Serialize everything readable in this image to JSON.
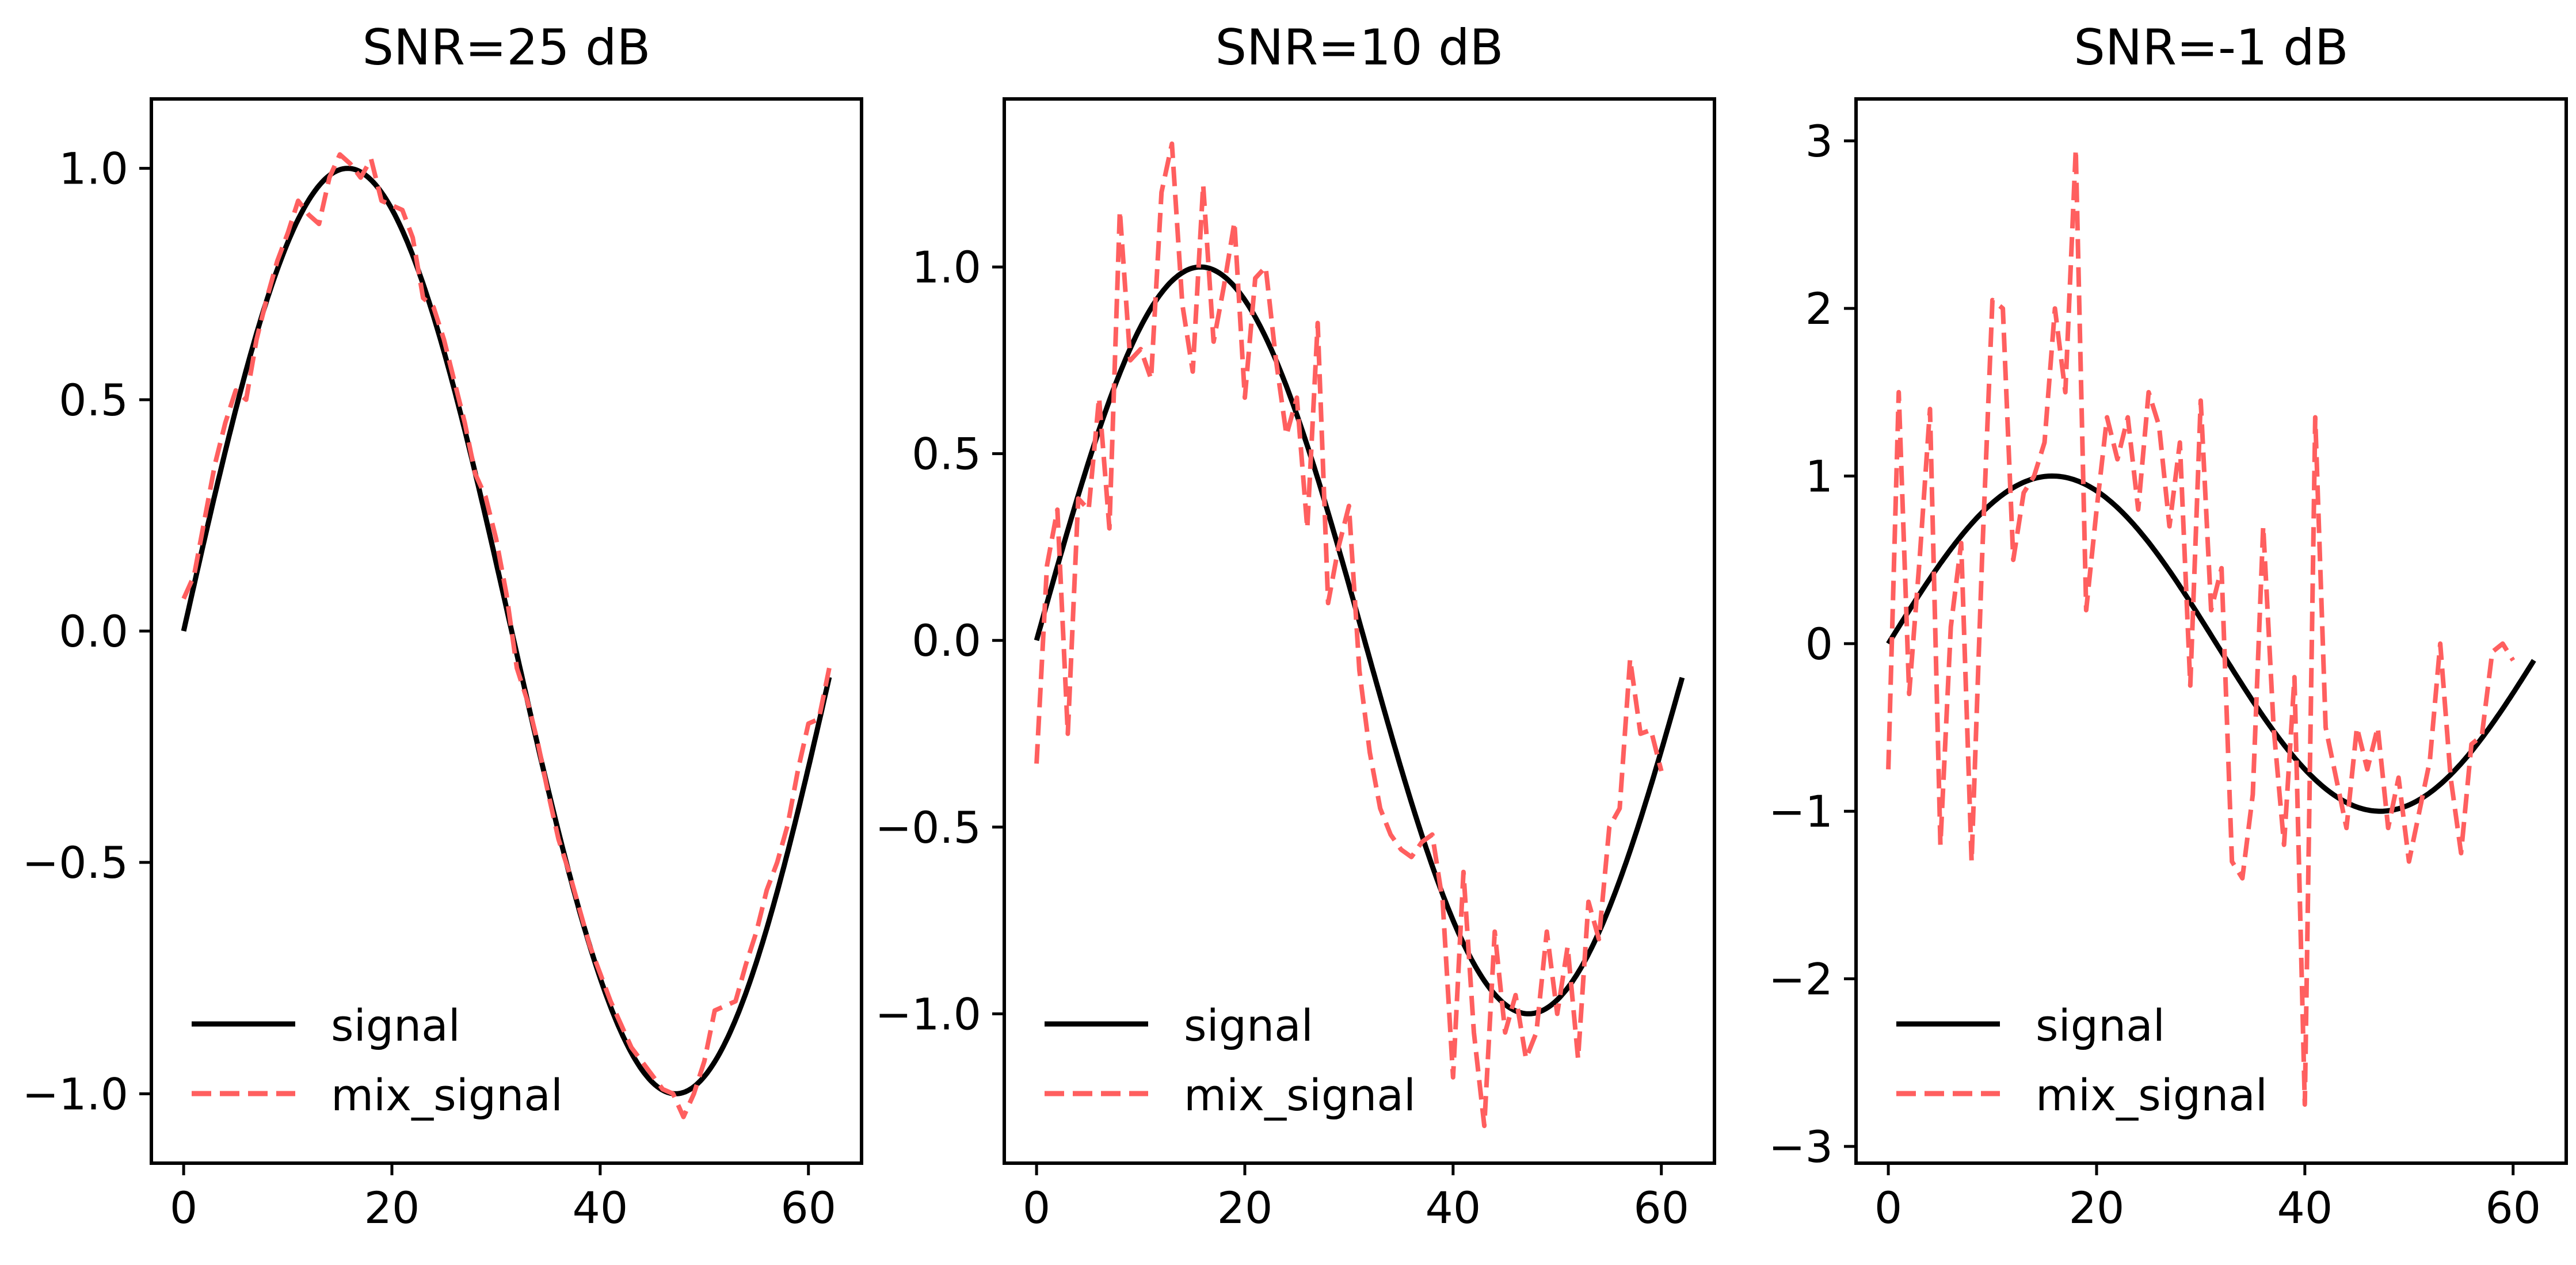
{
  "chart_data": [
    {
      "type": "line",
      "title": "SNR=25 dB",
      "xlabel": "",
      "ylabel": "",
      "xlim": [
        -3.1,
        65.1
      ],
      "ylim": [
        -1.15,
        1.15
      ],
      "xticks": [
        0,
        20,
        40,
        60
      ],
      "xtick_labels": [
        "0",
        "20",
        "40",
        "60"
      ],
      "yticks": [
        -1.0,
        -0.5,
        0.0,
        0.5,
        1.0
      ],
      "ytick_labels": [
        "−1.0",
        "−0.5",
        "0.0",
        "0.5",
        "1.0"
      ],
      "legend": {
        "location": "lower left",
        "entries": [
          "signal",
          "mix_signal"
        ]
      },
      "series": [
        {
          "name": "signal",
          "style": "solid",
          "color": "#000000",
          "generator": "sin",
          "x_start": 0,
          "x_end": 62,
          "period": 63
        },
        {
          "name": "mix_signal",
          "style": "dashed",
          "color": "#ff5f5f",
          "x_start": 0,
          "values": [
            0.07,
            0.12,
            0.24,
            0.36,
            0.45,
            0.52,
            0.5,
            0.63,
            0.72,
            0.8,
            0.86,
            0.93,
            0.9,
            0.88,
            0.98,
            1.03,
            1.01,
            0.98,
            1.02,
            0.93,
            0.92,
            0.91,
            0.85,
            0.72,
            0.7,
            0.63,
            0.54,
            0.45,
            0.34,
            0.29,
            0.2,
            0.08,
            -0.08,
            -0.15,
            -0.24,
            -0.35,
            -0.45,
            -0.52,
            -0.6,
            -0.68,
            -0.74,
            -0.8,
            -0.85,
            -0.9,
            -0.93,
            -0.96,
            -0.99,
            -1.0,
            -1.05,
            -1.0,
            -0.93,
            -0.82,
            -0.81,
            -0.8,
            -0.72,
            -0.65,
            -0.56,
            -0.5,
            -0.42,
            -0.3,
            -0.2,
            -0.19,
            -0.08
          ]
        }
      ]
    },
    {
      "type": "line",
      "title": "SNR=10 dB",
      "xlabel": "",
      "ylabel": "",
      "xlim": [
        -3.1,
        65.1
      ],
      "ylim": [
        -1.4,
        1.45
      ],
      "xticks": [
        0,
        20,
        40,
        60
      ],
      "xtick_labels": [
        "0",
        "20",
        "40",
        "60"
      ],
      "yticks": [
        -1.0,
        -0.5,
        0.0,
        0.5,
        1.0
      ],
      "ytick_labels": [
        "−1.0",
        "−0.5",
        "0.0",
        "0.5",
        "1.0"
      ],
      "legend": {
        "location": "lower left",
        "entries": [
          "signal",
          "mix_signal"
        ]
      },
      "series": [
        {
          "name": "signal",
          "style": "solid",
          "color": "#000000",
          "generator": "sin",
          "x_start": 0,
          "x_end": 62,
          "period": 63
        },
        {
          "name": "mix_signal",
          "style": "dashed",
          "color": "#ff5f5f",
          "x_start": 0,
          "values": [
            -0.33,
            0.2,
            0.35,
            -0.25,
            0.38,
            0.35,
            0.65,
            0.3,
            1.15,
            0.75,
            0.78,
            0.7,
            1.2,
            1.33,
            0.9,
            0.72,
            1.22,
            0.8,
            0.95,
            1.12,
            0.65,
            0.97,
            1.0,
            0.75,
            0.55,
            0.65,
            0.3,
            0.85,
            0.1,
            0.25,
            0.36,
            -0.08,
            -0.3,
            -0.45,
            -0.52,
            -0.56,
            -0.58,
            -0.54,
            -0.52,
            -0.7,
            -1.17,
            -0.62,
            -1.05,
            -1.3,
            -0.78,
            -1.05,
            -0.95,
            -1.12,
            -1.05,
            -0.78,
            -1.0,
            -0.82,
            -1.12,
            -0.7,
            -0.8,
            -0.5,
            -0.45,
            -0.05,
            -0.25,
            -0.24,
            -0.35
          ]
        }
      ]
    },
    {
      "type": "line",
      "title": "SNR=-1 dB",
      "xlabel": "",
      "ylabel": "",
      "xlim": [
        -3.1,
        65.1
      ],
      "ylim": [
        -3.1,
        3.25
      ],
      "xticks": [
        0,
        20,
        40,
        60
      ],
      "xtick_labels": [
        "0",
        "20",
        "40",
        "60"
      ],
      "yticks": [
        -3,
        -2,
        -1,
        0,
        1,
        2,
        3
      ],
      "ytick_labels": [
        "−3",
        "−2",
        "−1",
        "0",
        "1",
        "2",
        "3"
      ],
      "legend": {
        "location": "lower left",
        "entries": [
          "signal",
          "mix_signal"
        ]
      },
      "series": [
        {
          "name": "signal",
          "style": "solid",
          "color": "#000000",
          "generator": "sin",
          "x_start": 0,
          "x_end": 62,
          "period": 63
        },
        {
          "name": "mix_signal",
          "style": "dashed",
          "color": "#ff5f5f",
          "x_start": 0,
          "values": [
            -0.75,
            1.5,
            -0.3,
            0.5,
            1.4,
            -1.2,
            0.1,
            0.6,
            -1.3,
            0.5,
            2.05,
            2.0,
            0.5,
            0.9,
            1.0,
            1.2,
            2.0,
            1.5,
            2.95,
            0.2,
            0.8,
            1.35,
            1.1,
            1.35,
            0.8,
            1.5,
            1.3,
            0.7,
            1.2,
            -0.25,
            1.45,
            0.2,
            0.45,
            -1.3,
            -1.4,
            -0.9,
            0.7,
            -0.5,
            -1.2,
            -0.2,
            -2.75,
            1.35,
            -0.5,
            -0.8,
            -1.1,
            -0.5,
            -0.75,
            -0.5,
            -1.1,
            -0.8,
            -1.3,
            -1.0,
            -0.7,
            0.0,
            -0.8,
            -1.25,
            -0.6,
            -0.55,
            -0.05,
            0.0,
            -0.1
          ]
        }
      ]
    }
  ]
}
